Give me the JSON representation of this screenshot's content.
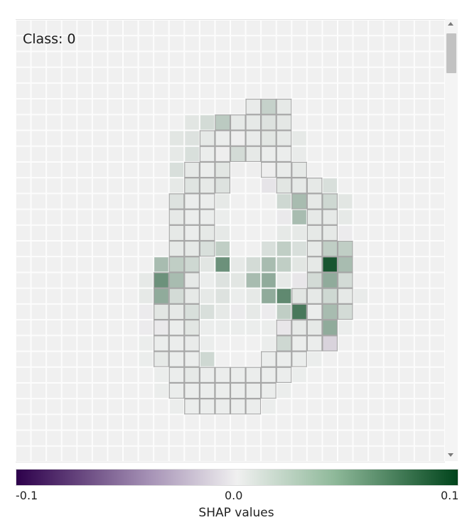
{
  "chart_data": {
    "type": "heatmap",
    "title": "Class: 0",
    "grid_size": 28,
    "colorbar": {
      "label": "SHAP values",
      "min": -0.1,
      "max": 0.1,
      "ticks": [
        "-0.1",
        "0.0",
        "0.1"
      ],
      "colors": [
        "#2d004b",
        "#f0f0f0",
        "#00441b"
      ]
    },
    "cells": [
      [
        5,
        15,
        0.003
      ],
      [
        5,
        16,
        0.018
      ],
      [
        5,
        17,
        0.004
      ],
      [
        6,
        11,
        0.006
      ],
      [
        6,
        12,
        0.012
      ],
      [
        6,
        13,
        0.022
      ],
      [
        6,
        14,
        0.004
      ],
      [
        6,
        15,
        0.004
      ],
      [
        6,
        16,
        0.008
      ],
      [
        6,
        17,
        0.005
      ],
      [
        7,
        10,
        0.006
      ],
      [
        7,
        11,
        0.008
      ],
      [
        7,
        12,
        0.004
      ],
      [
        7,
        13,
        0.002
      ],
      [
        7,
        14,
        0.001
      ],
      [
        7,
        15,
        0.003
      ],
      [
        7,
        16,
        0.006
      ],
      [
        7,
        17,
        0.004
      ],
      [
        7,
        18,
        0.004
      ],
      [
        8,
        10,
        0.004
      ],
      [
        8,
        11,
        0.01
      ],
      [
        8,
        12,
        0.002
      ],
      [
        8,
        13,
        0.001
      ],
      [
        8,
        14,
        0.012
      ],
      [
        8,
        15,
        0.004
      ],
      [
        8,
        16,
        0.002
      ],
      [
        8,
        17,
        0.002
      ],
      [
        8,
        18,
        0.003
      ],
      [
        9,
        10,
        0.01
      ],
      [
        9,
        11,
        0.004
      ],
      [
        9,
        12,
        0.002
      ],
      [
        9,
        13,
        0.006
      ],
      [
        9,
        14,
        0.001
      ],
      [
        9,
        15,
        0.001
      ],
      [
        9,
        16,
        0.001
      ],
      [
        9,
        17,
        0.003
      ],
      [
        9,
        18,
        0.004
      ],
      [
        10,
        10,
        0.004
      ],
      [
        10,
        11,
        0.007
      ],
      [
        10,
        12,
        0.004
      ],
      [
        10,
        13,
        0.008
      ],
      [
        10,
        16,
        -0.005
      ],
      [
        10,
        17,
        0.006
      ],
      [
        10,
        18,
        0.004
      ],
      [
        10,
        19,
        0.004
      ],
      [
        10,
        20,
        0.01
      ],
      [
        11,
        10,
        0.008
      ],
      [
        11,
        11,
        0.002
      ],
      [
        11,
        12,
        0.002
      ],
      [
        11,
        13,
        0.004
      ],
      [
        11,
        17,
        0.014
      ],
      [
        11,
        18,
        0.03
      ],
      [
        11,
        19,
        0.004
      ],
      [
        11,
        20,
        0.014
      ],
      [
        11,
        21,
        0.006
      ],
      [
        12,
        10,
        0.004
      ],
      [
        12,
        11,
        0.002
      ],
      [
        12,
        12,
        0.002
      ],
      [
        12,
        13,
        0.002
      ],
      [
        12,
        17,
        -0.003
      ],
      [
        12,
        18,
        0.03
      ],
      [
        12,
        19,
        0.004
      ],
      [
        12,
        20,
        0.004
      ],
      [
        12,
        21,
        0.004
      ],
      [
        13,
        10,
        0.004
      ],
      [
        13,
        11,
        0.002
      ],
      [
        13,
        12,
        0.004
      ],
      [
        13,
        13,
        0.004
      ],
      [
        13,
        17,
        0.004
      ],
      [
        13,
        18,
        0.004
      ],
      [
        13,
        19,
        0.004
      ],
      [
        13,
        20,
        0.004
      ],
      [
        13,
        21,
        -0.002
      ],
      [
        14,
        10,
        0.004
      ],
      [
        14,
        11,
        0.004
      ],
      [
        14,
        12,
        0.01
      ],
      [
        14,
        13,
        0.02
      ],
      [
        14,
        16,
        0.01
      ],
      [
        14,
        17,
        0.02
      ],
      [
        14,
        18,
        0.01
      ],
      [
        14,
        19,
        0.004
      ],
      [
        14,
        20,
        0.02
      ],
      [
        14,
        21,
        0.02
      ],
      [
        15,
        9,
        0.03
      ],
      [
        15,
        10,
        0.02
      ],
      [
        15,
        11,
        0.014
      ],
      [
        15,
        12,
        0.006
      ],
      [
        15,
        13,
        0.055
      ],
      [
        15,
        14,
        0.004
      ],
      [
        15,
        15,
        0.012
      ],
      [
        15,
        16,
        0.03
      ],
      [
        15,
        17,
        0.02
      ],
      [
        15,
        18,
        0.006
      ],
      [
        15,
        19,
        0.004
      ],
      [
        15,
        20,
        0.09
      ],
      [
        15,
        21,
        0.03
      ],
      [
        16,
        8,
        0.004
      ],
      [
        16,
        9,
        0.055
      ],
      [
        16,
        10,
        0.03
      ],
      [
        16,
        11,
        0.004
      ],
      [
        16,
        12,
        0.002
      ],
      [
        16,
        13,
        0.008
      ],
      [
        16,
        14,
        0.006
      ],
      [
        16,
        15,
        0.03
      ],
      [
        16,
        16,
        0.04
      ],
      [
        16,
        17,
        0.004
      ],
      [
        16,
        18,
        -0.004
      ],
      [
        16,
        19,
        0.012
      ],
      [
        16,
        20,
        0.04
      ],
      [
        16,
        21,
        0.012
      ],
      [
        17,
        8,
        0.004
      ],
      [
        17,
        9,
        0.04
      ],
      [
        17,
        10,
        0.012
      ],
      [
        17,
        11,
        0.004
      ],
      [
        17,
        12,
        0.004
      ],
      [
        17,
        13,
        0.008
      ],
      [
        17,
        14,
        0.002
      ],
      [
        17,
        15,
        0.004
      ],
      [
        17,
        16,
        0.04
      ],
      [
        17,
        17,
        0.06
      ],
      [
        17,
        18,
        0.006
      ],
      [
        17,
        19,
        0.004
      ],
      [
        17,
        20,
        0.014
      ],
      [
        17,
        21,
        0.004
      ],
      [
        17,
        22,
        0.003
      ],
      [
        18,
        8,
        -0.002
      ],
      [
        18,
        9,
        0.006
      ],
      [
        18,
        10,
        0.004
      ],
      [
        18,
        11,
        0.01
      ],
      [
        18,
        12,
        0.01
      ],
      [
        18,
        13,
        0.004
      ],
      [
        18,
        14,
        -0.002
      ],
      [
        18,
        15,
        0.004
      ],
      [
        18,
        16,
        -0.002
      ],
      [
        18,
        17,
        0.02
      ],
      [
        18,
        18,
        0.07
      ],
      [
        18,
        19,
        0.002
      ],
      [
        18,
        20,
        0.03
      ],
      [
        18,
        21,
        0.012
      ],
      [
        19,
        8,
        -0.002
      ],
      [
        19,
        9,
        -0.003
      ],
      [
        19,
        10,
        0.002
      ],
      [
        19,
        11,
        0.006
      ],
      [
        19,
        12,
        0.002
      ],
      [
        19,
        13,
        0.002
      ],
      [
        19,
        14,
        0.002
      ],
      [
        19,
        15,
        0.002
      ],
      [
        19,
        16,
        0.002
      ],
      [
        19,
        17,
        -0.004
      ],
      [
        19,
        18,
        0.004
      ],
      [
        19,
        19,
        0.004
      ],
      [
        19,
        20,
        0.04
      ],
      [
        19,
        21,
        0.002
      ],
      [
        20,
        8,
        0.002
      ],
      [
        20,
        9,
        0.002
      ],
      [
        20,
        10,
        0.002
      ],
      [
        20,
        11,
        0.003
      ],
      [
        20,
        12,
        0.002
      ],
      [
        20,
        16,
        0.002
      ],
      [
        20,
        17,
        0.014
      ],
      [
        20,
        18,
        0.002
      ],
      [
        20,
        19,
        0.002
      ],
      [
        20,
        20,
        -0.012
      ],
      [
        21,
        8,
        0.002
      ],
      [
        21,
        9,
        0.004
      ],
      [
        21,
        10,
        0.002
      ],
      [
        21,
        11,
        0.002
      ],
      [
        21,
        12,
        0.014
      ],
      [
        21,
        16,
        0.002
      ],
      [
        21,
        17,
        0.002
      ],
      [
        21,
        18,
        0.002
      ],
      [
        21,
        19,
        0.002
      ],
      [
        22,
        9,
        0.002
      ],
      [
        22,
        10,
        0.002
      ],
      [
        22,
        11,
        0.004
      ],
      [
        22,
        12,
        0.002
      ],
      [
        22,
        13,
        0.002
      ],
      [
        22,
        14,
        0.002
      ],
      [
        22,
        15,
        0.002
      ],
      [
        22,
        16,
        0.002
      ],
      [
        22,
        17,
        0.002
      ],
      [
        22,
        18,
        0.002
      ],
      [
        23,
        9,
        0.002
      ],
      [
        23,
        10,
        0.002
      ],
      [
        23,
        11,
        0.002
      ],
      [
        23,
        12,
        0.002
      ],
      [
        23,
        13,
        0.002
      ],
      [
        23,
        14,
        0.002
      ],
      [
        23,
        15,
        0.002
      ],
      [
        23,
        16,
        0.002
      ],
      [
        23,
        17,
        0.002
      ],
      [
        24,
        10,
        0.002
      ],
      [
        24,
        11,
        0.002
      ],
      [
        24,
        12,
        0.002
      ],
      [
        24,
        13,
        0.002
      ],
      [
        24,
        14,
        0.002
      ],
      [
        24,
        15,
        0.002
      ],
      [
        24,
        16,
        0.002
      ]
    ],
    "digit_pixels": [
      [
        5,
        15
      ],
      [
        5,
        16
      ],
      [
        5,
        17
      ],
      [
        6,
        13
      ],
      [
        6,
        14
      ],
      [
        6,
        15
      ],
      [
        6,
        16
      ],
      [
        6,
        17
      ],
      [
        7,
        12
      ],
      [
        7,
        13
      ],
      [
        7,
        14
      ],
      [
        7,
        15
      ],
      [
        7,
        16
      ],
      [
        7,
        17
      ],
      [
        8,
        12
      ],
      [
        8,
        13
      ],
      [
        8,
        14
      ],
      [
        8,
        15
      ],
      [
        8,
        16
      ],
      [
        8,
        17
      ],
      [
        9,
        11
      ],
      [
        9,
        12
      ],
      [
        9,
        13
      ],
      [
        9,
        16
      ],
      [
        9,
        17
      ],
      [
        9,
        18
      ],
      [
        10,
        11
      ],
      [
        10,
        12
      ],
      [
        10,
        13
      ],
      [
        10,
        17
      ],
      [
        10,
        18
      ],
      [
        10,
        19
      ],
      [
        11,
        10
      ],
      [
        11,
        11
      ],
      [
        11,
        12
      ],
      [
        11,
        18
      ],
      [
        11,
        19
      ],
      [
        11,
        20
      ],
      [
        12,
        10
      ],
      [
        12,
        11
      ],
      [
        12,
        12
      ],
      [
        12,
        19
      ],
      [
        12,
        20
      ],
      [
        13,
        10
      ],
      [
        13,
        11
      ],
      [
        13,
        12
      ],
      [
        13,
        19
      ],
      [
        13,
        20
      ],
      [
        14,
        10
      ],
      [
        14,
        11
      ],
      [
        14,
        12
      ],
      [
        14,
        19
      ],
      [
        14,
        20
      ],
      [
        14,
        21
      ],
      [
        15,
        10
      ],
      [
        15,
        11
      ],
      [
        15,
        19
      ],
      [
        15,
        20
      ],
      [
        15,
        21
      ],
      [
        16,
        9
      ],
      [
        16,
        10
      ],
      [
        16,
        11
      ],
      [
        16,
        19
      ],
      [
        16,
        20
      ],
      [
        16,
        21
      ],
      [
        17,
        9
      ],
      [
        17,
        10
      ],
      [
        17,
        11
      ],
      [
        17,
        18
      ],
      [
        17,
        19
      ],
      [
        17,
        20
      ],
      [
        17,
        21
      ],
      [
        18,
        9
      ],
      [
        18,
        10
      ],
      [
        18,
        11
      ],
      [
        18,
        18
      ],
      [
        18,
        19
      ],
      [
        18,
        20
      ],
      [
        18,
        21
      ],
      [
        19,
        9
      ],
      [
        19,
        10
      ],
      [
        19,
        11
      ],
      [
        19,
        17
      ],
      [
        19,
        18
      ],
      [
        19,
        19
      ],
      [
        19,
        20
      ],
      [
        20,
        9
      ],
      [
        20,
        10
      ],
      [
        20,
        11
      ],
      [
        20,
        17
      ],
      [
        20,
        18
      ],
      [
        20,
        19
      ],
      [
        20,
        20
      ],
      [
        21,
        9
      ],
      [
        21,
        10
      ],
      [
        21,
        11
      ],
      [
        21,
        16
      ],
      [
        21,
        17
      ],
      [
        21,
        18
      ],
      [
        22,
        10
      ],
      [
        22,
        11
      ],
      [
        22,
        12
      ],
      [
        22,
        13
      ],
      [
        22,
        14
      ],
      [
        22,
        15
      ],
      [
        22,
        16
      ],
      [
        22,
        17
      ],
      [
        23,
        10
      ],
      [
        23,
        11
      ],
      [
        23,
        12
      ],
      [
        23,
        13
      ],
      [
        23,
        14
      ],
      [
        23,
        15
      ],
      [
        23,
        16
      ],
      [
        24,
        11
      ],
      [
        24,
        12
      ],
      [
        24,
        13
      ],
      [
        24,
        14
      ],
      [
        24,
        15
      ]
    ]
  }
}
